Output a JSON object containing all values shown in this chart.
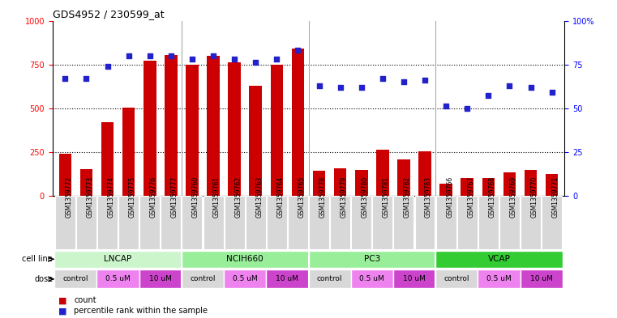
{
  "title": "GDS4952 / 230599_at",
  "samples": [
    "GSM1359772",
    "GSM1359773",
    "GSM1359774",
    "GSM1359775",
    "GSM1359776",
    "GSM1359777",
    "GSM1359760",
    "GSM1359761",
    "GSM1359762",
    "GSM1359763",
    "GSM1359764",
    "GSM1359765",
    "GSM1359778",
    "GSM1359779",
    "GSM1359780",
    "GSM1359781",
    "GSM1359782",
    "GSM1359783",
    "GSM1359766",
    "GSM1359767",
    "GSM1359768",
    "GSM1359769",
    "GSM1359770",
    "GSM1359771"
  ],
  "counts": [
    240,
    150,
    420,
    505,
    770,
    805,
    750,
    800,
    760,
    630,
    750,
    840,
    140,
    155,
    145,
    260,
    205,
    255,
    70,
    100,
    100,
    135,
    145,
    125
  ],
  "percentiles": [
    67,
    67,
    74,
    80,
    80,
    80,
    78,
    80,
    78,
    76,
    78,
    83,
    63,
    62,
    62,
    67,
    65,
    66,
    51,
    50,
    57,
    63,
    62,
    59
  ],
  "cell_line_groups": [
    {
      "name": "LNCAP",
      "start": 0,
      "end": 5
    },
    {
      "name": "NCIH660",
      "start": 6,
      "end": 11
    },
    {
      "name": "PC3",
      "start": 12,
      "end": 17
    },
    {
      "name": "VCAP",
      "start": 18,
      "end": 23
    }
  ],
  "dose_groups": [
    {
      "label": "control",
      "start": 0,
      "end": 1
    },
    {
      "label": "0.5 uM",
      "start": 2,
      "end": 3
    },
    {
      "label": "10 uM",
      "start": 4,
      "end": 5
    },
    {
      "label": "control",
      "start": 6,
      "end": 7
    },
    {
      "label": "0.5 uM",
      "start": 8,
      "end": 9
    },
    {
      "label": "10 uM",
      "start": 10,
      "end": 11
    },
    {
      "label": "control",
      "start": 12,
      "end": 13
    },
    {
      "label": "0.5 uM",
      "start": 14,
      "end": 15
    },
    {
      "label": "10 uM",
      "start": 16,
      "end": 17
    },
    {
      "label": "control",
      "start": 18,
      "end": 19
    },
    {
      "label": "0.5 uM",
      "start": 20,
      "end": 21
    },
    {
      "label": "10 uM",
      "start": 22,
      "end": 23
    }
  ],
  "cell_line_colors": {
    "LNCAP": "#ccf5cc",
    "NCIH660": "#99ee99",
    "PC3": "#99ee99",
    "VCAP": "#33cc33"
  },
  "dose_color_control": "#d8d8d8",
  "dose_color_05": "#ee82ee",
  "dose_color_10": "#cc44cc",
  "bar_color": "#cc0000",
  "dot_color": "#2222cc",
  "ylim_left": [
    0,
    1000
  ],
  "ylim_right": [
    0,
    100
  ],
  "yticks_left": [
    0,
    250,
    500,
    750,
    1000
  ],
  "ytick_labels_left": [
    "0",
    "250",
    "500",
    "750",
    "1000"
  ],
  "yticks_right": [
    0,
    25,
    50,
    75,
    100
  ],
  "ytick_labels_right": [
    "0",
    "25",
    "50",
    "75",
    "100%"
  ],
  "plot_bg_color": "#ffffff",
  "tick_label_bg": "#d8d8d8",
  "separator_color": "#ffffff"
}
